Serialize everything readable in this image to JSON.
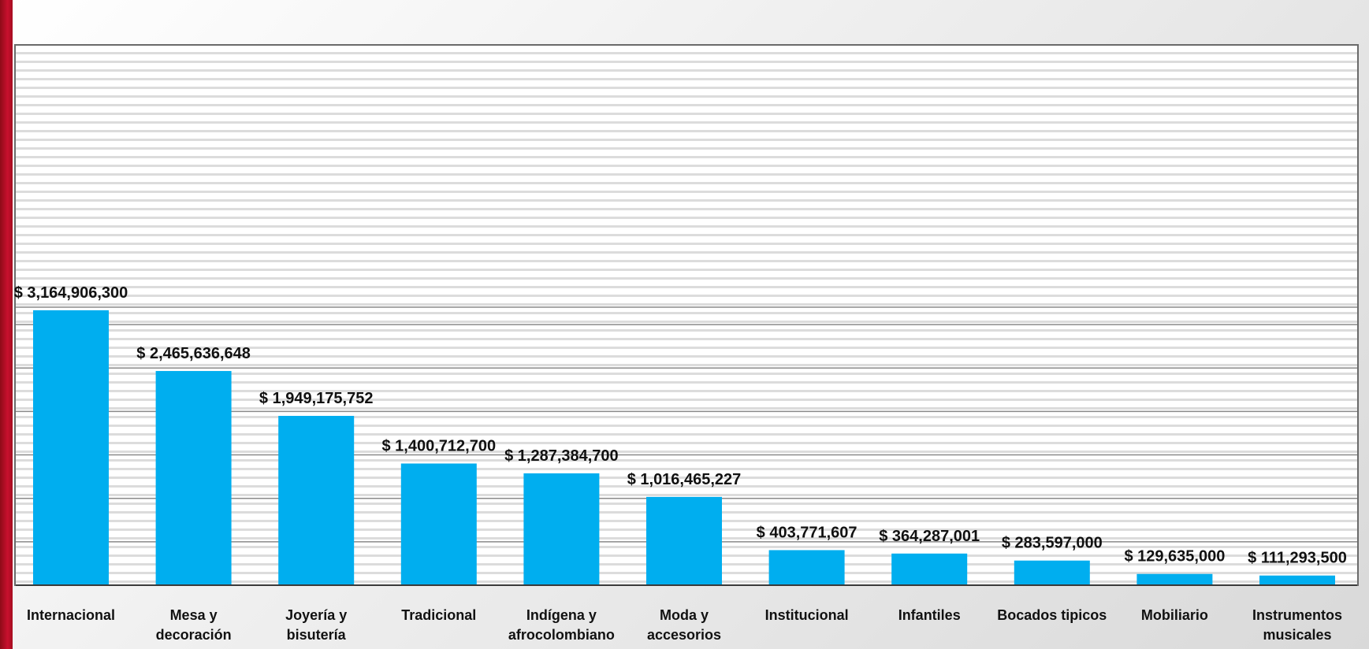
{
  "colors": {
    "bar": "#00aeef",
    "accent": "#c8102e",
    "label": "#111111"
  },
  "chart_data": {
    "type": "bar",
    "title": "",
    "xlabel": "",
    "ylabel": "",
    "ylim": [
      0,
      3500000000
    ],
    "grid": true,
    "legend": "none",
    "categories": [
      [
        "Internacional"
      ],
      [
        "Mesa y",
        "decoración"
      ],
      [
        "Joyería y",
        "bisutería"
      ],
      [
        "Tradicional"
      ],
      [
        "Indígena y",
        "afrocolombiano"
      ],
      [
        "Moda y",
        "accesorios"
      ],
      [
        "Institucional"
      ],
      [
        "Infantiles"
      ],
      [
        "Bocados tipicos"
      ],
      [
        "Mobiliario"
      ],
      [
        "Instrumentos",
        "musicales"
      ]
    ],
    "values": [
      3164906300,
      2465636648,
      1949175752,
      1400712700,
      1287384700,
      1016465227,
      403771607,
      364287001,
      283597000,
      129635000,
      111293500
    ],
    "value_labels": [
      "$ 3,164,906,300",
      "$ 2,465,636,648",
      "$ 1,949,175,752",
      "$ 1,400,712,700",
      "$ 1,287,384,700",
      "$ 1,016,465,227",
      "$ 403,771,607",
      "$ 364,287,001",
      "$ 283,597,000",
      "$ 129,635,000",
      "$ 111,293,500"
    ]
  }
}
